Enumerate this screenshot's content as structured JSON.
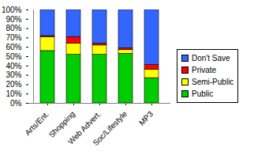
{
  "chart_data": {
    "type": "bar",
    "stacked": true,
    "legend": "right",
    "grid": false,
    "categories": [
      "Arts/Ent.",
      "Shopping",
      "Web Advert.",
      "Soc/Lifestyle",
      "MP3"
    ],
    "series": [
      {
        "name": "Public",
        "color": "#00cc00",
        "values": [
          56,
          52,
          52,
          53,
          27
        ]
      },
      {
        "name": "Semi-Public",
        "color": "#ffff00",
        "values": [
          15,
          12,
          10,
          4,
          9
        ]
      },
      {
        "name": "Private",
        "color": "#ff0000",
        "values": [
          1,
          7,
          2,
          2,
          5
        ]
      },
      {
        "name": "Don't Save",
        "color": "#3366ff",
        "values": [
          28,
          29,
          36,
          41,
          59
        ]
      }
    ],
    "ylim": [
      0,
      100
    ],
    "yticks": [
      {
        "value": 0,
        "label": "0%"
      },
      {
        "value": 10,
        "label": "10%"
      },
      {
        "value": 20,
        "label": "20%"
      },
      {
        "value": 30,
        "label": "30%"
      },
      {
        "value": 40,
        "label": "40%"
      },
      {
        "value": 50,
        "label": "50%"
      },
      {
        "value": 60,
        "label": "60%"
      },
      {
        "value": 70,
        "label": "70%"
      },
      {
        "value": 80,
        "label": "80%"
      },
      {
        "value": 90,
        "label": "90%"
      },
      {
        "value": 100,
        "label": "100%"
      }
    ]
  }
}
